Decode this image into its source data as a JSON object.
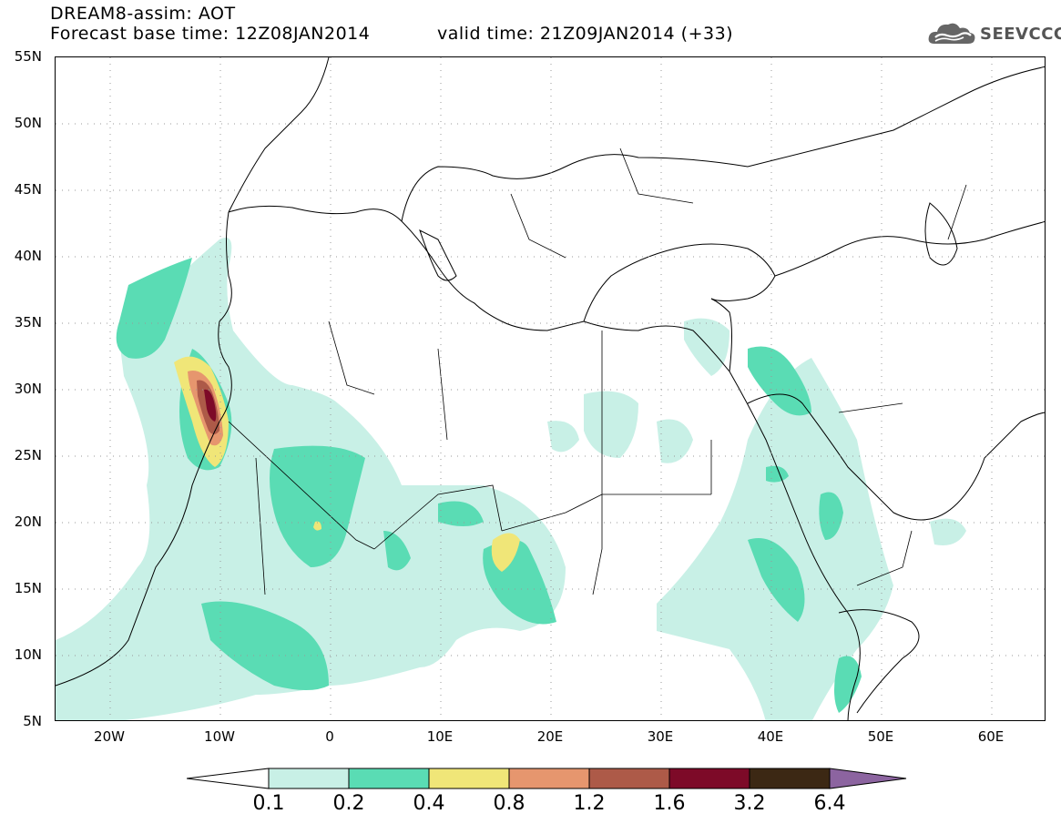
{
  "header": {
    "title": "DREAM8-assim: AOT",
    "base_time": "Forecast base time: 12Z08JAN2014",
    "valid_time": "valid time: 21Z09JAN2014 (+33)"
  },
  "logo": {
    "text": "SEEVCCC",
    "icon": "cloud-icon"
  },
  "map": {
    "lat_range": [
      5,
      55
    ],
    "lon_range": [
      -25,
      65
    ],
    "lat_labels": [
      "55N",
      "50N",
      "45N",
      "40N",
      "35N",
      "30N",
      "25N",
      "20N",
      "15N",
      "10N",
      "5N"
    ],
    "lon_labels": [
      "20W",
      "10W",
      "0",
      "10E",
      "20E",
      "30E",
      "40E",
      "50E",
      "60E"
    ],
    "gridlines": "dotted"
  },
  "colorbar": {
    "levels": [
      "0.1",
      "0.2",
      "0.4",
      "0.8",
      "1.2",
      "1.6",
      "3.2",
      "6.4"
    ],
    "colors": [
      "#c8f0e6",
      "#5adcb4",
      "#f0e678",
      "#e6966e",
      "#ad5a48",
      "#7d0a28",
      "#3c2814",
      "#8c64a0"
    ],
    "under_color": "#ffffff"
  }
}
